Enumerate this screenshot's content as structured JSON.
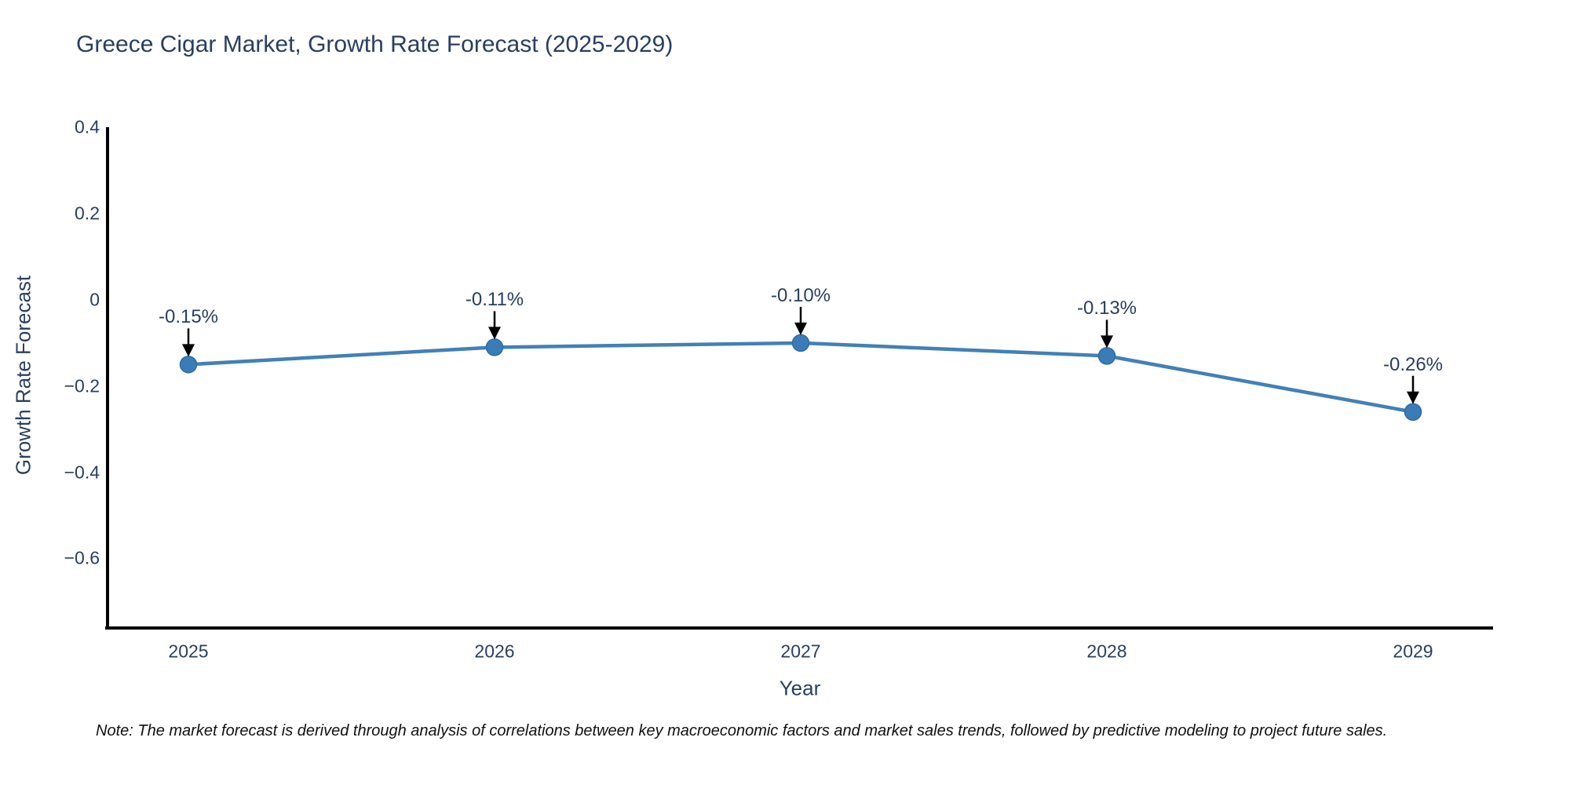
{
  "title": "Greece Cigar Market, Growth Rate Forecast (2025-2029)",
  "note": "Note: The market forecast is derived through analysis of correlations between key macroeconomic factors and market sales trends, followed by predictive modeling to project future sales.",
  "chart_data": {
    "type": "line",
    "title": "Greece Cigar Market, Growth Rate Forecast (2025-2029)",
    "xlabel": "Year",
    "ylabel": "Growth Rate Forecast",
    "categories": [
      "2025",
      "2026",
      "2027",
      "2028",
      "2029"
    ],
    "x": [
      2025,
      2026,
      2027,
      2028,
      2029
    ],
    "values": [
      -0.15,
      -0.11,
      -0.1,
      -0.13,
      -0.26
    ],
    "point_labels": [
      "-0.15%",
      "-0.11%",
      "-0.10%",
      "-0.13%",
      "-0.26%"
    ],
    "ytick_values": [
      0.4,
      0.2,
      0,
      -0.2,
      -0.4,
      -0.6
    ],
    "ytick_labels": [
      "0.4",
      "0.2",
      "0",
      "−0.2",
      "−0.4",
      "−0.6"
    ],
    "ylim": [
      -0.76,
      0.4
    ],
    "grid": false,
    "legend": false,
    "colors": {
      "line": "#4280b8",
      "marker": "#3c7cb6",
      "marker_edge": "#2f6ba4",
      "axis": "#000000",
      "text": "#2a3f5f",
      "annotation_arrow": "#000000",
      "note_text": "#111111",
      "background": "#ffffff"
    }
  }
}
